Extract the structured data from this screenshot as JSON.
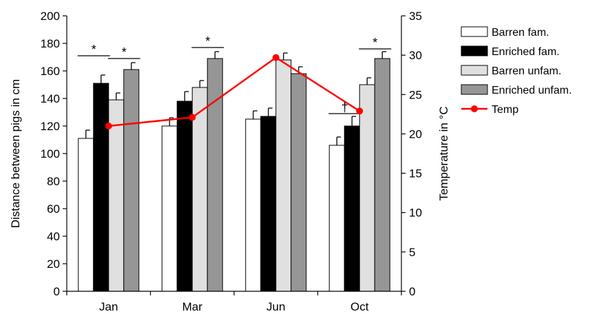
{
  "chart_data": {
    "type": "bar",
    "categories": [
      "Jan",
      "Mar",
      "Jun",
      "Oct"
    ],
    "ylabel": "Distance between pigs in cm",
    "y2label": "Temperature in °C",
    "ylim": [
      0,
      200
    ],
    "y2lim": [
      0,
      35
    ],
    "yticks": [
      "0",
      "20",
      "40",
      "60",
      "80",
      "100",
      "120",
      "140",
      "160",
      "180",
      "200"
    ],
    "y2ticks": [
      "0",
      "5",
      "10",
      "15",
      "20",
      "25",
      "30",
      "35"
    ],
    "grid": false,
    "legend_position": "right",
    "series": [
      {
        "name": "Barren fam.",
        "color": "#ffffff",
        "values": [
          111,
          120,
          125,
          106
        ],
        "errors": [
          6,
          6,
          6,
          6
        ]
      },
      {
        "name": "Enriched fam.",
        "color": "#000000",
        "values": [
          151,
          138,
          127,
          120
        ],
        "errors": [
          6,
          7,
          6,
          7
        ]
      },
      {
        "name": "Barren unfam.",
        "color": "#e0e0e0",
        "values": [
          139,
          148,
          168,
          150
        ],
        "errors": [
          5,
          5,
          5,
          5
        ]
      },
      {
        "name": "Enriched unfam.",
        "color": "#969696",
        "values": [
          161,
          169,
          158,
          169
        ],
        "errors": [
          5,
          5,
          5,
          5
        ]
      }
    ],
    "line_series": {
      "name": "Temp",
      "color": "#ff0000",
      "values": [
        21.0,
        22.1,
        29.7,
        22.9
      ]
    },
    "annotations": [
      {
        "text": "*",
        "category": 0,
        "from_series": 0,
        "to_series": 1,
        "level": 171
      },
      {
        "text": "*",
        "category": 0,
        "from_series": 2,
        "to_series": 3,
        "level": 169
      },
      {
        "text": "*",
        "category": 1,
        "from_series": 2,
        "to_series": 3,
        "level": 177
      },
      {
        "text": "*",
        "category": 3,
        "from_series": 2,
        "to_series": 3,
        "level": 176
      },
      {
        "text": "†",
        "category": 3,
        "from_series": 0,
        "to_series": 1,
        "level": 129
      }
    ]
  }
}
